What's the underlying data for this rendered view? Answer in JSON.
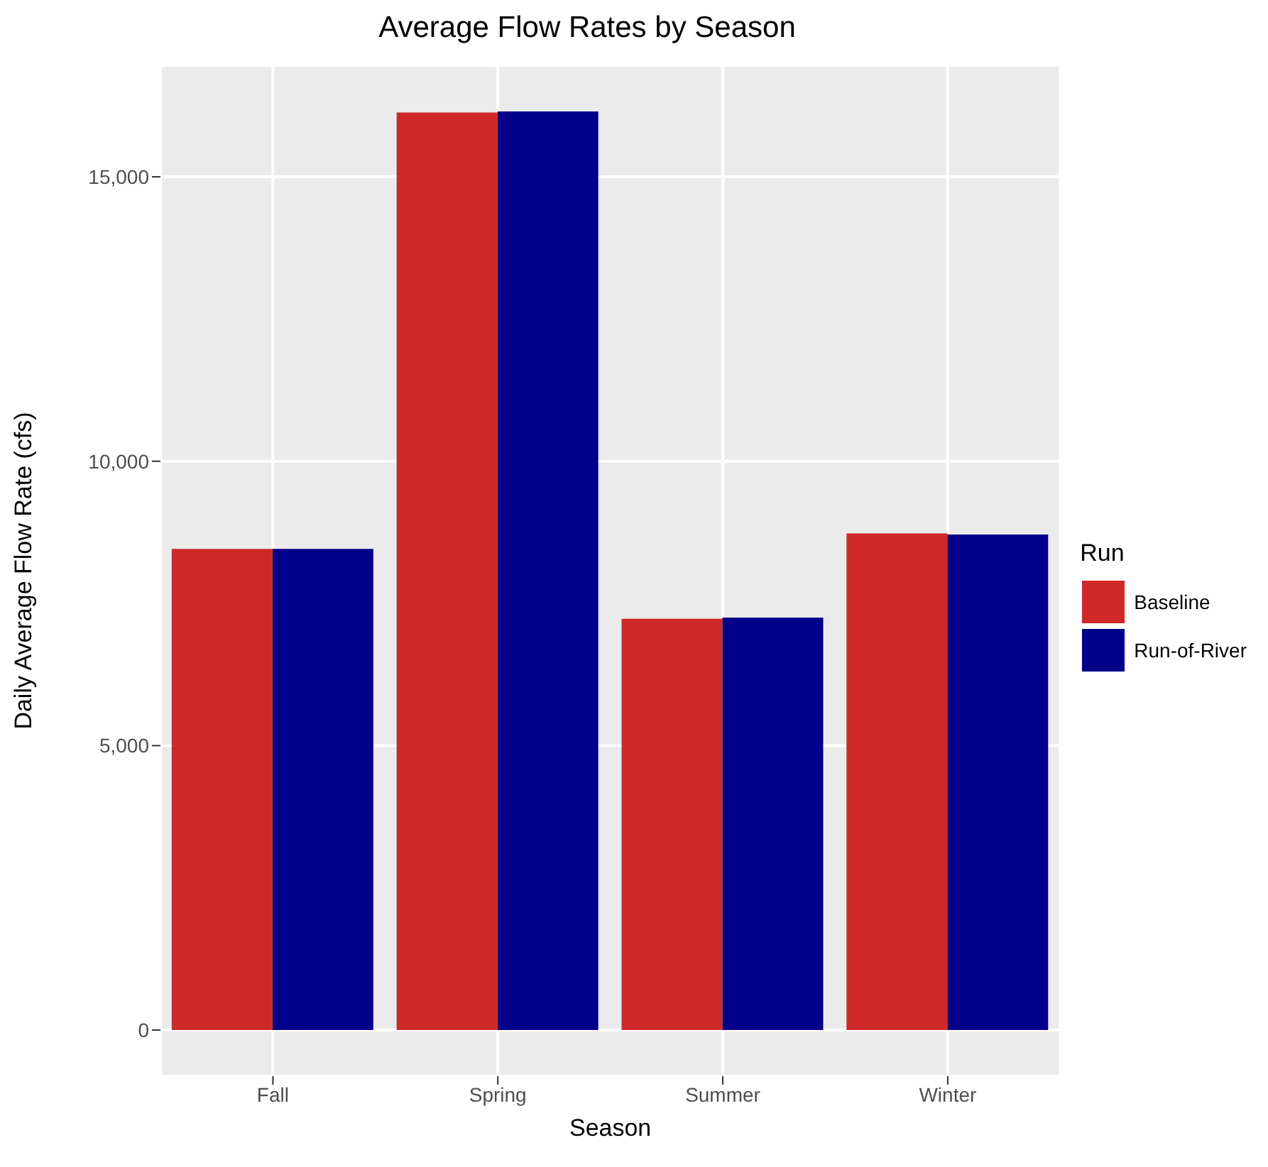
{
  "chart_data": {
    "type": "bar",
    "title": "Average Flow Rates by Season",
    "xlabel": "Season",
    "ylabel": "Daily Average Flow Rate (cfs)",
    "legend_title": "Run",
    "categories": [
      "Fall",
      "Spring",
      "Summer",
      "Winter"
    ],
    "series": [
      {
        "name": "Baseline",
        "color": "#d02828",
        "values": [
          8460,
          16130,
          7230,
          8730
        ]
      },
      {
        "name": "Run-of-River",
        "color": "#00008b",
        "values": [
          8460,
          16150,
          7250,
          8710
        ]
      }
    ],
    "ylim": [
      -810,
      16960
    ],
    "yticks": [
      0,
      {
        "value": 5000,
        "label": "5,000"
      },
      {
        "value": 10000,
        "label": "10,000"
      },
      {
        "value": 15000,
        "label": "15,000"
      }
    ],
    "grid": true,
    "legend": "right"
  }
}
